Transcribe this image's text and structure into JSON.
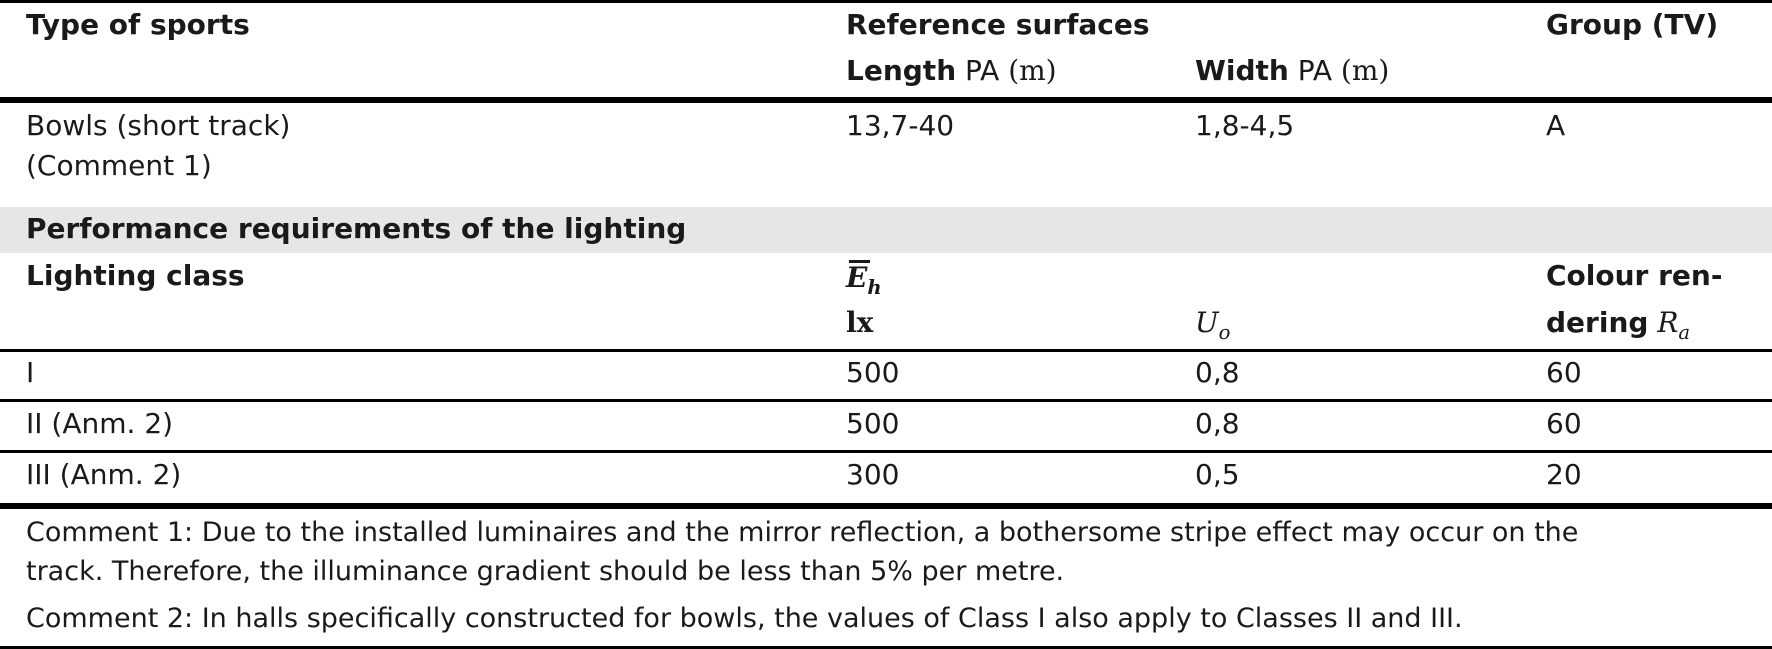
{
  "header": {
    "col_sport": "Type of sports",
    "col_reference": "Reference surfaces",
    "col_group": "Group (TV)",
    "length_label": "Length",
    "width_label": "Width",
    "unit_pa": "PA",
    "unit_m": "(m)"
  },
  "sport_row": {
    "name_line1": "Bowls (short track)",
    "name_line2": "(Comment 1)",
    "length": "13,7-40",
    "width": "1,8-4,5",
    "group": "A"
  },
  "section_title": "Performance requirements of the lighting",
  "perf_header": {
    "lighting_class": "Lighting class",
    "eh_symbol": "E",
    "eh_sub": "h",
    "eh_unit": "lx",
    "uo_symbol": "U",
    "uo_sub": "o",
    "colour_line1": "Colour ren-",
    "colour_line2": "dering",
    "ra_symbol": "R",
    "ra_sub": "a"
  },
  "rows": [
    {
      "class": "I",
      "eh": "500",
      "uo": "0,8",
      "ra": "60"
    },
    {
      "class": "II (Anm. 2)",
      "eh": "500",
      "uo": "0,8",
      "ra": "60"
    },
    {
      "class": "III (Anm. 2)",
      "eh": "300",
      "uo": "0,5",
      "ra": "20"
    }
  ],
  "comments": {
    "c1_line1": "Comment 1: Due to the installed luminaires and the mirror reflection, a bothersome stripe effect may occur on the",
    "c1_line2": "track. Therefore, the illuminance gradient should be less than 5% per metre.",
    "c2": "Comment 2: In halls specifically constructed for bowls, the values of Class I also apply to Classes II and III."
  }
}
